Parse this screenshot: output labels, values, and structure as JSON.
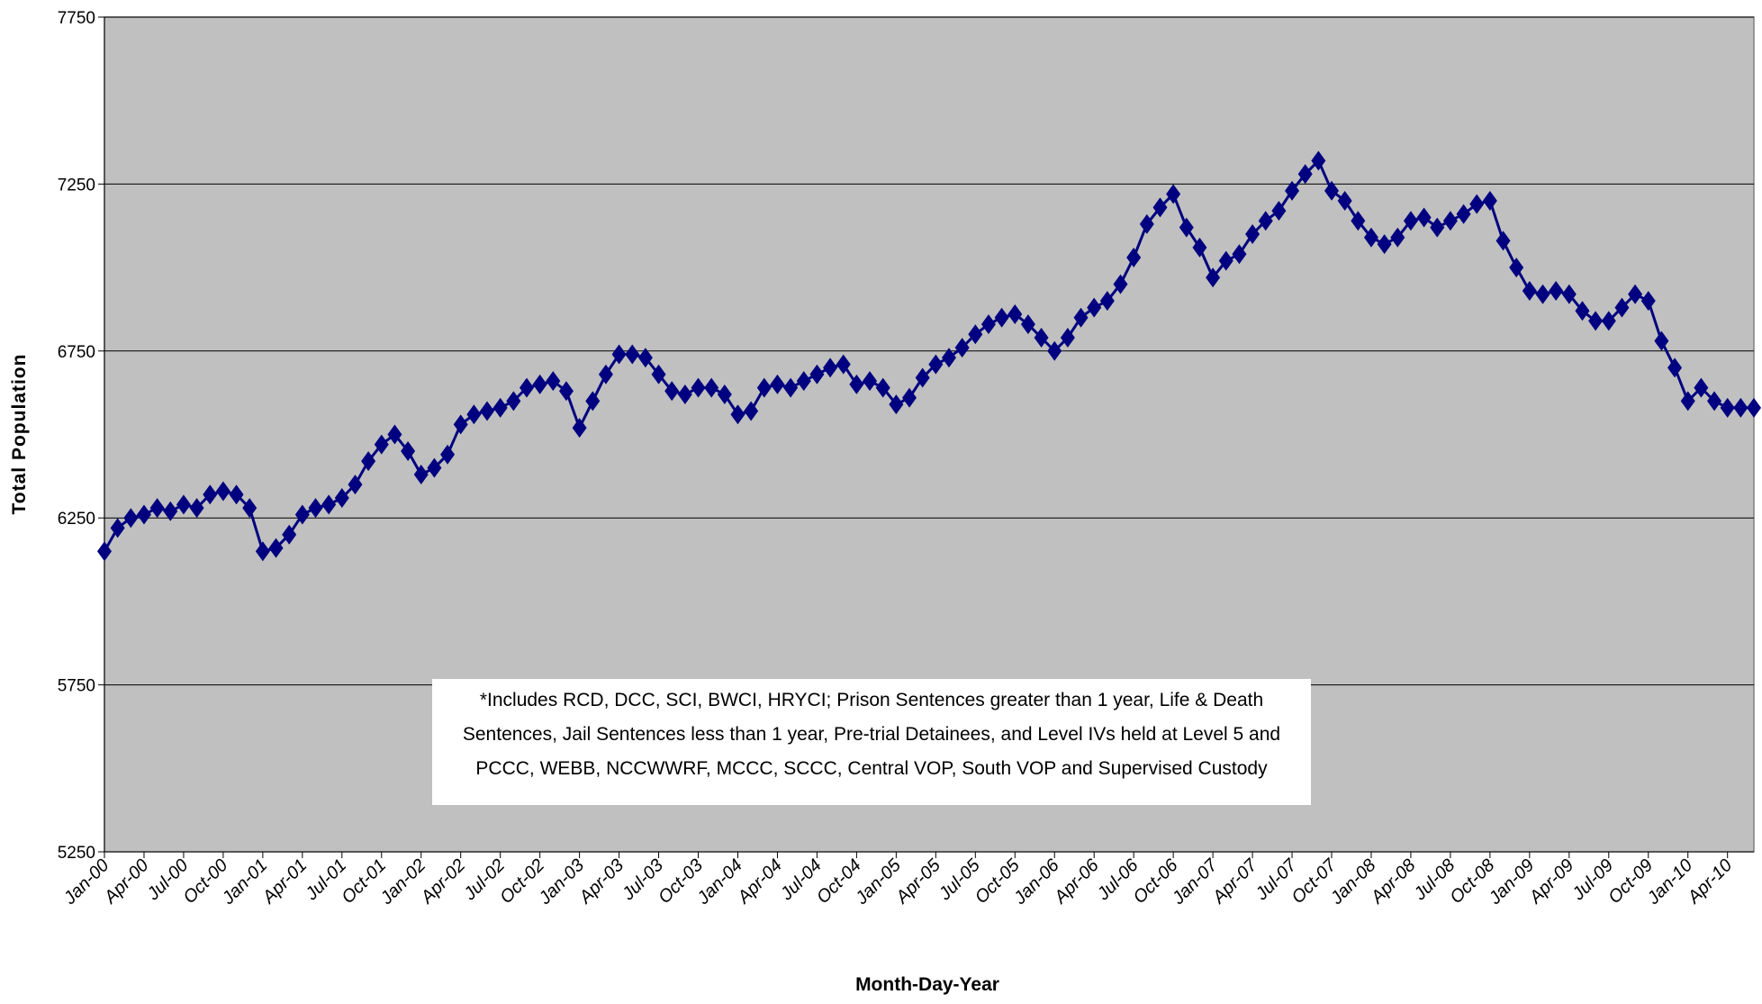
{
  "chart_data": {
    "type": "line",
    "x_label": "Month-Day-Year",
    "y_label": "Total Population",
    "note": [
      "*Includes RCD, DCC, SCI, BWCI, HRYCI; Prison Sentences greater than 1 year, Life & Death",
      "Sentences, Jail Sentences less than 1 year, Pre-trial Detainees, and Level IVs held at Level 5 and",
      "PCCC, WEBB, NCCWWRF, MCCC, SCCC, Central VOP, South VOP and Supervised Custody"
    ],
    "categories": [
      "Jan-00",
      null,
      null,
      "Apr-00",
      null,
      null,
      "Jul-00",
      null,
      null,
      "Oct-00",
      null,
      null,
      "Jan-01",
      null,
      null,
      "Apr-01",
      null,
      null,
      "Jul-01",
      null,
      null,
      "Oct-01",
      null,
      null,
      "Jan-02",
      null,
      null,
      "Apr-02",
      null,
      null,
      "Jul-02",
      null,
      null,
      "Oct-02",
      null,
      null,
      "Jan-03",
      null,
      null,
      "Apr-03",
      null,
      null,
      "Jul-03",
      null,
      null,
      "Oct-03",
      null,
      null,
      "Jan-04",
      null,
      null,
      "Apr-04",
      null,
      null,
      "Jul-04",
      null,
      null,
      "Oct-04",
      null,
      null,
      "Jan-05",
      null,
      null,
      "Apr-05",
      null,
      null,
      "Jul-05",
      null,
      null,
      "Oct-05",
      null,
      null,
      "Jan-06",
      null,
      null,
      "Apr-06",
      null,
      null,
      "Jul-06",
      null,
      null,
      "Oct-06",
      null,
      null,
      "Jan-07",
      null,
      null,
      "Apr-07",
      null,
      null,
      "Jul-07",
      null,
      null,
      "Oct-07",
      null,
      null,
      "Jan-08",
      null,
      null,
      "Apr-08",
      null,
      null,
      "Jul-08",
      null,
      null,
      "Oct-08",
      null,
      null,
      "Jan-09",
      null,
      null,
      "Apr-09",
      null,
      null,
      "Jul-09",
      null,
      null,
      "Oct-09",
      null,
      null,
      "Jan-10",
      null,
      null,
      "Apr-10",
      null,
      null
    ],
    "values": [
      6150,
      6220,
      6250,
      6260,
      6280,
      6270,
      6290,
      6280,
      6320,
      6330,
      6320,
      6280,
      6150,
      6160,
      6200,
      6260,
      6280,
      6290,
      6310,
      6350,
      6420,
      6470,
      6500,
      6450,
      6380,
      6400,
      6440,
      6530,
      6560,
      6570,
      6580,
      6600,
      6640,
      6650,
      6660,
      6630,
      6520,
      6600,
      6680,
      6740,
      6740,
      6730,
      6680,
      6630,
      6620,
      6640,
      6640,
      6620,
      6560,
      6570,
      6640,
      6650,
      6640,
      6660,
      6680,
      6700,
      6710,
      6650,
      6660,
      6640,
      6590,
      6610,
      6670,
      6710,
      6730,
      6760,
      6800,
      6830,
      6850,
      6860,
      6830,
      6790,
      6750,
      6790,
      6850,
      6880,
      6900,
      6950,
      7030,
      7130,
      7180,
      7220,
      7120,
      7060,
      6970,
      7020,
      7040,
      7100,
      7140,
      7170,
      7230,
      7280,
      7320,
      7230,
      7200,
      7140,
      7090,
      7070,
      7090,
      7140,
      7150,
      7120,
      7140,
      7160,
      7190,
      7200,
      7080,
      7000,
      6930,
      6920,
      6930,
      6920,
      6870,
      6840,
      6840,
      6880,
      6920,
      6900,
      6780,
      6700,
      6600,
      6640,
      6600,
      6580,
      6580,
      6580
    ],
    "color": "#000080",
    "ylim": [
      5250,
      7750
    ],
    "yticks": [
      5250,
      5750,
      6250,
      6750,
      7250,
      7750
    ],
    "grid": true
  }
}
